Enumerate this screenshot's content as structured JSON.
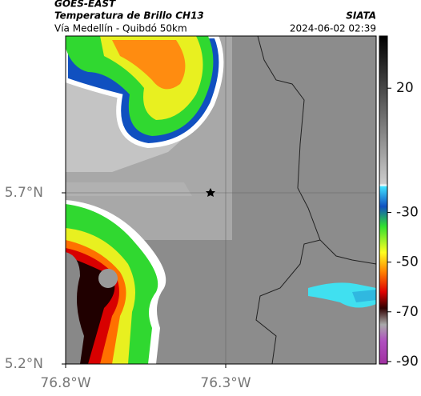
{
  "header": {
    "source": "GOES-EAST",
    "product": "Temperatura de Brillo CH13",
    "agency": "SIATA",
    "route": "Vía Medellín - Quibdó 50km",
    "datetime": "2024-06-02 02:39"
  },
  "map": {
    "xlim": [
      -76.8,
      -75.83
    ],
    "ylim": [
      5.2,
      6.158
    ],
    "xticks": [
      {
        "value": -76.8,
        "label": "76.8°W"
      },
      {
        "value": -76.3,
        "label": "76.3°W"
      }
    ],
    "yticks": [
      {
        "value": 5.7,
        "label": "5.7°N"
      },
      {
        "value": 5.2,
        "label": "5.2°N"
      }
    ]
  },
  "colorbar": {
    "lim": [
      41,
      -91
    ],
    "ticks": [
      20,
      -30,
      -50,
      -70,
      -90
    ]
  }
}
